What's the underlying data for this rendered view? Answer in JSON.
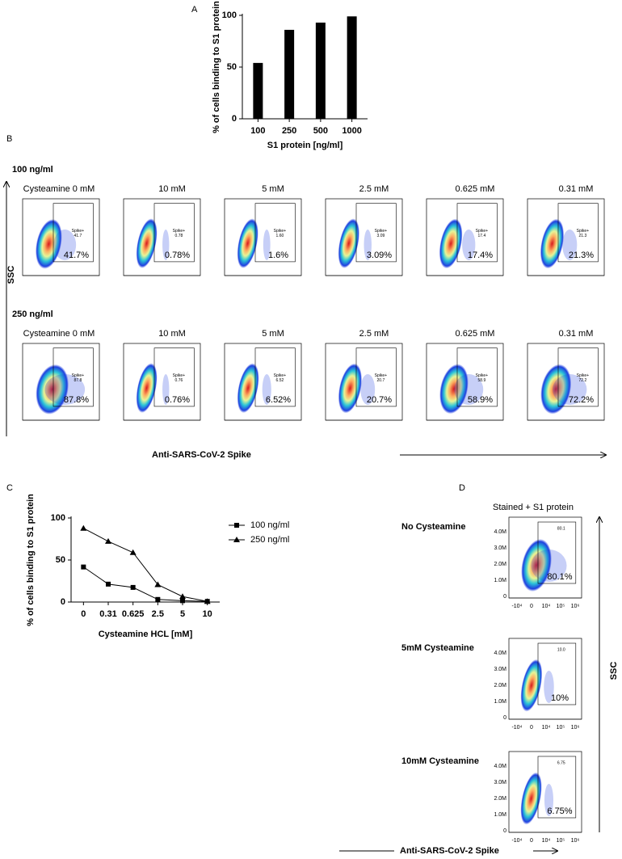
{
  "chart_data": [
    {
      "type": "bar",
      "panel": "A",
      "ylabel": "% of cells binding to S1 protein",
      "xlabel": "S1 protein [ng/ml]",
      "categories": [
        "100",
        "250",
        "500",
        "1000"
      ],
      "values": [
        54,
        86,
        93,
        99
      ],
      "color": "#000000",
      "ylim": [
        0,
        100
      ],
      "yticks": [
        0,
        50,
        100
      ]
    },
    {
      "type": "line",
      "panel": "C",
      "ylabel": "% of cells binding to S1 protein",
      "xlabel": "Cysteamine HCL [mM]",
      "categories": [
        "0",
        "0.31",
        "0.625",
        "2.5",
        "5",
        "10"
      ],
      "series": [
        {
          "name": "100 ng/ml",
          "color": "#000000",
          "marker": "square",
          "values": [
            41.7,
            21.3,
            17.4,
            3.09,
            1.6,
            0.78
          ]
        },
        {
          "name": "250 ng/ml",
          "color": "#000000",
          "marker": "triangle",
          "values": [
            87.8,
            72.2,
            58.9,
            20.7,
            6.52,
            0.76
          ]
        }
      ],
      "ylim": [
        0,
        100
      ],
      "yticks": [
        0,
        50,
        100
      ]
    }
  ],
  "panel_b": {
    "panel": "B",
    "y_axis": "SSC",
    "x_axis": "Anti-SARS-CoV-2 Spike",
    "gate": "Spike+",
    "rows": [
      {
        "label": "100 ng/ml",
        "plots": [
          {
            "title": "Cysteamine 0 mM",
            "gate_value": "41.7",
            "percent": "41.7%"
          },
          {
            "title": "10 mM",
            "gate_value": "0.78",
            "percent": "0.78%"
          },
          {
            "title": "5 mM",
            "gate_value": "1.60",
            "percent": "1.6%"
          },
          {
            "title": "2.5 mM",
            "gate_value": "3.09",
            "percent": "3.09%"
          },
          {
            "title": "0.625 mM",
            "gate_value": "17.4",
            "percent": "17.4%"
          },
          {
            "title": "0.31 mM",
            "gate_value": "21.3",
            "percent": "21.3%"
          }
        ]
      },
      {
        "label": "250 ng/ml",
        "plots": [
          {
            "title": "Cysteamine 0 mM",
            "gate_value": "87.8",
            "percent": "87.8%"
          },
          {
            "title": "10 mM",
            "gate_value": "0.76",
            "percent": "0.76%"
          },
          {
            "title": "5 mM",
            "gate_value": "6.52",
            "percent": "6.52%"
          },
          {
            "title": "2.5 mM",
            "gate_value": "20.7",
            "percent": "20.7%"
          },
          {
            "title": "0.625 mM",
            "gate_value": "58.9",
            "percent": "58.9%"
          },
          {
            "title": "0.31 mM",
            "gate_value": "72.2",
            "percent": "72.2%"
          }
        ]
      }
    ]
  },
  "panel_d": {
    "panel": "D",
    "header": "Stained + S1 protein",
    "y_axis": "SSC",
    "x_axis": "Anti-SARS-CoV-2 Spike",
    "y_ticks": [
      "4.0M",
      "3.0M",
      "2.0M",
      "1.0M",
      "0"
    ],
    "x_ticks": [
      "-10⁴",
      "0",
      "10⁴",
      "10⁵",
      "10⁶"
    ],
    "rows": [
      {
        "label": "No Cysteamine",
        "gate_value": "80.1",
        "percent": "80.1%"
      },
      {
        "label": "5mM Cysteamine",
        "gate_value": "10.0",
        "percent": "10%"
      },
      {
        "label": "10mM Cysteamine",
        "gate_value": "6.75",
        "percent": "6.75%"
      }
    ]
  }
}
